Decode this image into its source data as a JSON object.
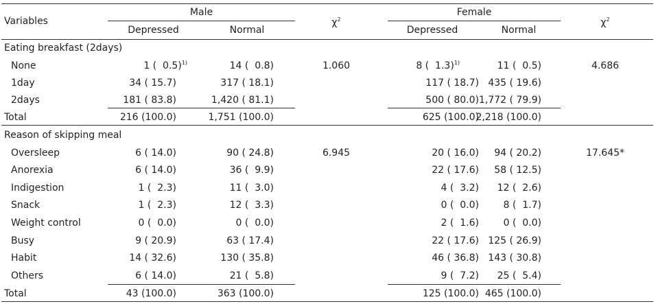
{
  "header": {
    "variables": "Variables",
    "male": "Male",
    "female": "Female",
    "chi_base": "χ",
    "chi_exp": "2",
    "depressed": "Depressed",
    "normal": "Normal"
  },
  "sections": [
    {
      "title": "Eating breakfast (2days)",
      "chi_male": "1.060",
      "chi_female": "4.686",
      "rows": [
        {
          "label": "None",
          "m_dep": "1 (  0.5)",
          "m_dep_note": "1)",
          "m_nor": "14 (  0.8)",
          "f_dep": "8 (  1.3)",
          "f_dep_note": "1)",
          "f_nor": "11 (  0.5)"
        },
        {
          "label": "1day",
          "m_dep": "34 ( 15.7)",
          "m_nor": "317 ( 18.1)",
          "f_dep": "117 ( 18.7)",
          "f_nor": "435 ( 19.6)"
        },
        {
          "label": "2days",
          "m_dep": "181 ( 83.8)",
          "m_nor": "1,420 ( 81.1)",
          "f_dep": "500 ( 80.0)",
          "f_nor": "1,772 ( 79.9)"
        },
        {
          "label": "Total",
          "m_dep": "216 (100.0)",
          "m_nor": "1,751 (100.0)",
          "f_dep": "625 (100.0)",
          "f_nor": "2,218 (100.0)"
        }
      ]
    },
    {
      "title": "Reason of skipping meal",
      "chi_male": "6.945",
      "chi_female": "17.645*",
      "rows": [
        {
          "label": "Oversleep",
          "m_dep": "6 ( 14.0)",
          "m_nor": "90 ( 24.8)",
          "f_dep": "20 ( 16.0)",
          "f_nor": "94 ( 20.2)"
        },
        {
          "label": "Anorexia",
          "m_dep": "6 ( 14.0)",
          "m_nor": "36 (  9.9)",
          "f_dep": "22 ( 17.6)",
          "f_nor": "58 ( 12.5)"
        },
        {
          "label": "Indigestion",
          "m_dep": "1 (  2.3)",
          "m_nor": "11 (  3.0)",
          "f_dep": "4 (  3.2)",
          "f_nor": "12 (  2.6)"
        },
        {
          "label": "Snack",
          "m_dep": "1 (  2.3)",
          "m_nor": "12 (  3.3)",
          "f_dep": "0 (  0.0)",
          "f_nor": "8 (  1.7)"
        },
        {
          "label": "Weight control",
          "m_dep": "0 (  0.0)",
          "m_nor": "0 (  0.0)",
          "f_dep": "2 (  1.6)",
          "f_nor": "0 (  0.0)"
        },
        {
          "label": "Busy",
          "m_dep": "9 ( 20.9)",
          "m_nor": "63 ( 17.4)",
          "f_dep": "22 ( 17.6)",
          "f_nor": "125 ( 26.9)"
        },
        {
          "label": "Habit",
          "m_dep": "14 ( 32.6)",
          "m_nor": "130 ( 35.8)",
          "f_dep": "46 ( 36.8)",
          "f_nor": "143 ( 30.8)"
        },
        {
          "label": "Others",
          "m_dep": "6 ( 14.0)",
          "m_nor": "21 (  5.8)",
          "f_dep": "9 (  7.2)",
          "f_nor": "25 (  5.4)"
        },
        {
          "label": "Total",
          "m_dep": "43 (100.0)",
          "m_nor": "363 (100.0)",
          "f_dep": "125 (100.0)",
          "f_nor": "465 (100.0)"
        }
      ]
    }
  ]
}
